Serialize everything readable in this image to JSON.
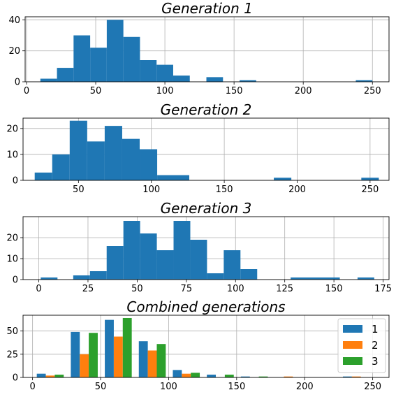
{
  "chart_data": [
    {
      "type": "bar",
      "title": "Generation 1",
      "xlim": [
        -1,
        262
      ],
      "ylim": [
        0,
        42
      ],
      "xticks": [
        0,
        50,
        100,
        150,
        200,
        250
      ],
      "yticks": [
        0,
        20,
        40
      ],
      "grid": true,
      "color": "#1f77b4",
      "bins": [
        {
          "x0": 10,
          "x1": 22,
          "count": 2
        },
        {
          "x0": 22,
          "x1": 34,
          "count": 9
        },
        {
          "x0": 34,
          "x1": 46,
          "count": 30
        },
        {
          "x0": 46,
          "x1": 58,
          "count": 22
        },
        {
          "x0": 58,
          "x1": 70,
          "count": 40
        },
        {
          "x0": 70,
          "x1": 82,
          "count": 29
        },
        {
          "x0": 82,
          "x1": 94,
          "count": 14
        },
        {
          "x0": 94,
          "x1": 106,
          "count": 11
        },
        {
          "x0": 106,
          "x1": 118,
          "count": 4
        },
        {
          "x0": 130,
          "x1": 142,
          "count": 3
        },
        {
          "x0": 154,
          "x1": 166,
          "count": 1
        },
        {
          "x0": 238,
          "x1": 250,
          "count": 1
        }
      ]
    },
    {
      "type": "bar",
      "title": "Generation 2",
      "xlim": [
        12,
        263
      ],
      "ylim": [
        0,
        24
      ],
      "xticks": [
        50,
        100,
        150,
        200,
        250
      ],
      "yticks": [
        0,
        10,
        20
      ],
      "grid": true,
      "color": "#1f77b4",
      "bins": [
        {
          "x0": 20,
          "x1": 32,
          "count": 3
        },
        {
          "x0": 32,
          "x1": 44,
          "count": 10
        },
        {
          "x0": 44,
          "x1": 56,
          "count": 23
        },
        {
          "x0": 56,
          "x1": 68,
          "count": 15
        },
        {
          "x0": 68,
          "x1": 80,
          "count": 21
        },
        {
          "x0": 80,
          "x1": 92,
          "count": 16
        },
        {
          "x0": 92,
          "x1": 104,
          "count": 12
        },
        {
          "x0": 104,
          "x1": 126,
          "count": 2
        },
        {
          "x0": 184,
          "x1": 196,
          "count": 1
        },
        {
          "x0": 244,
          "x1": 256,
          "count": 1
        }
      ]
    },
    {
      "type": "bar",
      "title": "Generation 3",
      "xlim": [
        -8,
        178
      ],
      "ylim": [
        0,
        30
      ],
      "xticks": [
        0,
        25,
        50,
        75,
        100,
        125,
        150,
        175
      ],
      "yticks": [
        0,
        10,
        20
      ],
      "grid": true,
      "color": "#1f77b4",
      "bins": [
        {
          "x0": 1,
          "x1": 9.5,
          "count": 1
        },
        {
          "x0": 17.5,
          "x1": 26,
          "count": 2
        },
        {
          "x0": 26,
          "x1": 34.5,
          "count": 4
        },
        {
          "x0": 34.5,
          "x1": 43,
          "count": 16
        },
        {
          "x0": 43,
          "x1": 51.5,
          "count": 28
        },
        {
          "x0": 51.5,
          "x1": 60,
          "count": 22
        },
        {
          "x0": 60,
          "x1": 68.5,
          "count": 14
        },
        {
          "x0": 68.5,
          "x1": 77,
          "count": 28
        },
        {
          "x0": 77,
          "x1": 85.5,
          "count": 19
        },
        {
          "x0": 85.5,
          "x1": 94,
          "count": 3
        },
        {
          "x0": 94,
          "x1": 102.5,
          "count": 14
        },
        {
          "x0": 102.5,
          "x1": 111,
          "count": 5
        },
        {
          "x0": 128,
          "x1": 153,
          "count": 1
        },
        {
          "x0": 162,
          "x1": 170.5,
          "count": 1
        }
      ]
    },
    {
      "type": "bar",
      "title": "Combined generations",
      "xlim": [
        -7,
        262
      ],
      "ylim": [
        0,
        67
      ],
      "xticks": [
        0,
        50,
        100,
        150,
        200,
        250
      ],
      "yticks": [
        0,
        25,
        50
      ],
      "grid": true,
      "legend_position": "top-right",
      "group_centers": [
        13,
        38,
        63,
        88,
        113,
        138,
        163,
        188,
        213,
        238
      ],
      "bar_width": 6.6,
      "series": [
        {
          "name": "1",
          "color": "#1f77b4",
          "values": [
            4,
            49,
            62,
            39,
            8,
            3,
            1,
            0,
            0,
            1
          ]
        },
        {
          "name": "2",
          "color": "#ff7f0e",
          "values": [
            2,
            25,
            44,
            29,
            4,
            0,
            0,
            1,
            0,
            1
          ]
        },
        {
          "name": "3",
          "color": "#2ca02c",
          "values": [
            3,
            48,
            64,
            36,
            5,
            3,
            1,
            0,
            0,
            0
          ]
        }
      ]
    }
  ]
}
